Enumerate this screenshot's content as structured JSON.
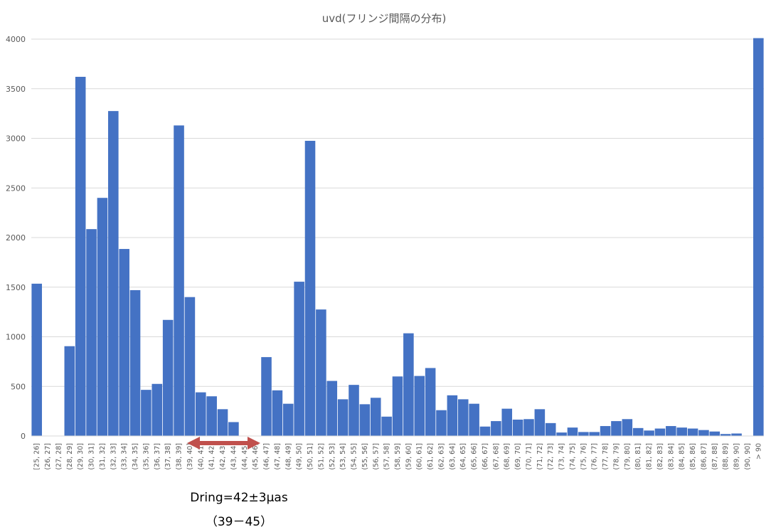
{
  "chart_data": {
    "type": "bar",
    "title": "uvd(フリンジ間隔の分布)",
    "ylim": [
      0,
      4000
    ],
    "yticks": [
      0,
      500,
      1000,
      1500,
      2000,
      2500,
      3000,
      3500,
      4000
    ],
    "grid": true,
    "bar_color": "#4472C4",
    "categories": [
      "[25, 26]",
      "(26, 27]",
      "(27, 28]",
      "(28, 29]",
      "(29, 30]",
      "(30, 31]",
      "(31, 32]",
      "(32, 33]",
      "(33, 34]",
      "(34, 35]",
      "(35, 36]",
      "(36, 37]",
      "(37, 38]",
      "(38, 39]",
      "(39, 40]",
      "(40, 41]",
      "(41, 42]",
      "(42, 43]",
      "(43, 44]",
      "(44, 45]",
      "(45, 46]",
      "(46, 47]",
      "(47, 48]",
      "(48, 49]",
      "(49, 50]",
      "(50, 51]",
      "(51, 52]",
      "(52, 53]",
      "(53, 54]",
      "(54, 55]",
      "(55, 56]",
      "(56, 57]",
      "(57, 58]",
      "(58, 59]",
      "(59, 60]",
      "(60, 61]",
      "(61, 62]",
      "(62, 63]",
      "(63, 64]",
      "(64, 65]",
      "(65, 66]",
      "(66, 67]",
      "(67, 68]",
      "(68, 69]",
      "(69, 70]",
      "(70, 71]",
      "(71, 72]",
      "(72, 73]",
      "(73, 74]",
      "(74, 75]",
      "(75, 76]",
      "(76, 77]",
      "(77, 78]",
      "(78, 79]",
      "(79, 80]",
      "(80, 81]",
      "(81, 82]",
      "(82, 83]",
      "(83, 84]",
      "(84, 85]",
      "(85, 86]",
      "(86, 87]",
      "(87, 88]",
      "(88, 89]",
      "(89, 90]",
      "(90, 90]",
      "> 90"
    ],
    "values": [
      1535,
      0,
      0,
      905,
      3620,
      2085,
      2400,
      3275,
      1885,
      1470,
      465,
      525,
      1170,
      3130,
      1400,
      440,
      400,
      270,
      140,
      0,
      0,
      795,
      460,
      325,
      1555,
      2975,
      1275,
      555,
      370,
      515,
      320,
      385,
      195,
      600,
      1035,
      605,
      685,
      260,
      410,
      370,
      325,
      95,
      150,
      275,
      165,
      170,
      270,
      130,
      35,
      85,
      40,
      40,
      100,
      150,
      170,
      80,
      55,
      75,
      100,
      85,
      75,
      60,
      45,
      20,
      25,
      0,
      4010
    ]
  },
  "annotation": {
    "arrow_color": "#C0504D",
    "line1": "Dring=42±3μas",
    "line2": "（39－45）"
  }
}
